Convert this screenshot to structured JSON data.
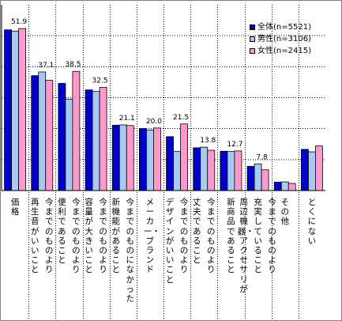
{
  "chart_data": {
    "type": "bar",
    "ylim": [
      0,
      60
    ],
    "y_gridlines": [
      10,
      20,
      30,
      40,
      50
    ],
    "grid": true,
    "legend_position": "top-right",
    "categories": [
      "価格",
      "今までのものより再生音がいいこと",
      "今までのものより便利であること",
      "今までのものより容量が大きいこと",
      "今までのものになかった新機能があること",
      "メーカー・ブランド",
      "今までのものよりデザインがいいこと",
      "今までのものより丈夫であること",
      "新商品であること",
      "今までのものより周辺機器・アクセサリが充実していること",
      "その他",
      "とくにない"
    ],
    "label_columns": [
      [
        "価格"
      ],
      [
        "今までのものより",
        "再生音がいいこと"
      ],
      [
        "今までのものより",
        "便利であること"
      ],
      [
        "今までのものより",
        "容量が大きいこと"
      ],
      [
        "今までのものになかった",
        "新機能があること"
      ],
      [
        "メーカー・ブランド"
      ],
      [
        "今までのものより",
        "デザインがいいこと"
      ],
      [
        "今までのものより",
        "丈夫であること"
      ],
      [
        "新商品であること"
      ],
      [
        "今までのものより",
        "充実していること",
        "周辺機器・アクセサリが"
      ],
      [
        "その他"
      ],
      [
        "とくにない"
      ]
    ],
    "series": [
      {
        "name": "全体(n=5521)",
        "color": "#0000cc",
        "values": [
          51.9,
          37.1,
          34.6,
          32.5,
          21.1,
          20.0,
          17.4,
          13.8,
          12.7,
          7.8,
          2.7,
          13.3
        ]
      },
      {
        "name": "男性(n=3106)",
        "color": "#a6caf0",
        "values": [
          51.5,
          38.3,
          29.5,
          32.0,
          21.2,
          19.5,
          12.6,
          14.0,
          12.6,
          8.6,
          2.8,
          12.5
        ]
      },
      {
        "name": "女性(n=2415)",
        "color": "#ff99cc",
        "values": [
          52.3,
          35.6,
          38.5,
          33.3,
          21.0,
          20.2,
          21.5,
          13.0,
          12.8,
          6.7,
          2.3,
          14.4
        ]
      }
    ],
    "data_labels": [
      "51.9",
      "37.1",
      "38.5",
      "32.5",
      "21.1",
      "20.0",
      "21.5",
      "13.8",
      "12.7",
      "7.8",
      "",
      ""
    ]
  }
}
